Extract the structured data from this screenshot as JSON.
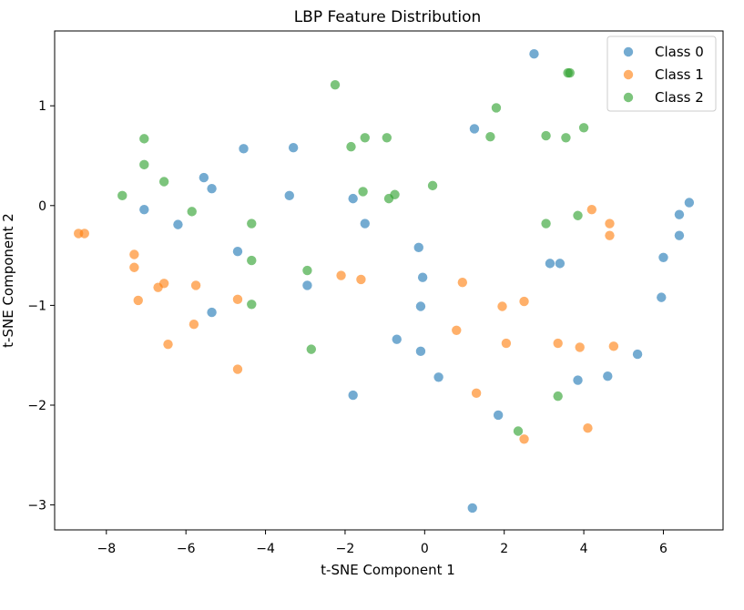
{
  "chart_data": {
    "type": "scatter",
    "title": "LBP Feature Distribution",
    "xlabel": "t-SNE Component 1",
    "ylabel": "t-SNE Component 2",
    "xlim": [
      -9.3,
      7.5
    ],
    "ylim": [
      -3.25,
      1.75
    ],
    "xticks": [
      -8,
      -6,
      -4,
      -2,
      0,
      2,
      4,
      6
    ],
    "yticks": [
      -3,
      -2,
      -1,
      0,
      1
    ],
    "xtick_labels": [
      "−8",
      "−6",
      "−4",
      "−2",
      "0",
      "2",
      "4",
      "6"
    ],
    "ytick_labels": [
      "−3",
      "−2",
      "−1",
      "0",
      "1"
    ],
    "grid": false,
    "legend_position": "top-right",
    "series": [
      {
        "name": "Class 0",
        "color": "#1f77b4",
        "points": [
          [
            2.75,
            1.52
          ],
          [
            1.25,
            0.77
          ],
          [
            -4.55,
            0.57
          ],
          [
            -3.3,
            0.58
          ],
          [
            -5.55,
            0.28
          ],
          [
            -5.35,
            0.17
          ],
          [
            -3.4,
            0.1
          ],
          [
            -1.8,
            0.07
          ],
          [
            -7.05,
            -0.04
          ],
          [
            -6.2,
            -0.19
          ],
          [
            -1.5,
            -0.18
          ],
          [
            -4.7,
            -0.46
          ],
          [
            -0.15,
            -0.42
          ],
          [
            -0.05,
            -0.72
          ],
          [
            -2.95,
            -0.8
          ],
          [
            -0.1,
            -1.01
          ],
          [
            -5.35,
            -1.07
          ],
          [
            -0.7,
            -1.34
          ],
          [
            -0.1,
            -1.46
          ],
          [
            0.35,
            -1.72
          ],
          [
            -1.8,
            -1.9
          ],
          [
            1.85,
            -2.1
          ],
          [
            1.2,
            -3.03
          ],
          [
            3.15,
            -0.58
          ],
          [
            3.4,
            -0.58
          ],
          [
            3.85,
            -1.75
          ],
          [
            4.6,
            -1.71
          ],
          [
            5.35,
            -1.49
          ],
          [
            5.95,
            -0.92
          ],
          [
            6.0,
            -0.52
          ],
          [
            6.4,
            -0.3
          ],
          [
            6.4,
            -0.09
          ],
          [
            6.65,
            0.03
          ]
        ]
      },
      {
        "name": "Class 1",
        "color": "#ff7f0e",
        "points": [
          [
            -8.7,
            -0.28
          ],
          [
            -8.55,
            -0.28
          ],
          [
            -7.3,
            -0.49
          ],
          [
            -7.3,
            -0.62
          ],
          [
            -7.2,
            -0.95
          ],
          [
            -6.7,
            -0.82
          ],
          [
            -6.55,
            -0.78
          ],
          [
            -5.75,
            -0.8
          ],
          [
            -5.8,
            -1.19
          ],
          [
            -6.45,
            -1.39
          ],
          [
            -4.7,
            -0.94
          ],
          [
            -4.7,
            -1.64
          ],
          [
            -2.1,
            -0.7
          ],
          [
            -1.6,
            -0.74
          ],
          [
            0.95,
            -0.77
          ],
          [
            0.8,
            -1.25
          ],
          [
            1.3,
            -1.88
          ],
          [
            1.95,
            -1.01
          ],
          [
            2.05,
            -1.38
          ],
          [
            2.5,
            -0.96
          ],
          [
            2.5,
            -2.34
          ],
          [
            3.35,
            -1.38
          ],
          [
            3.9,
            -1.42
          ],
          [
            4.1,
            -2.23
          ],
          [
            4.2,
            -0.04
          ],
          [
            4.65,
            -0.18
          ],
          [
            4.65,
            -0.3
          ],
          [
            4.75,
            -1.41
          ]
        ]
      },
      {
        "name": "Class 2",
        "color": "#2ca02c",
        "points": [
          [
            -2.25,
            1.21
          ],
          [
            1.8,
            0.98
          ],
          [
            3.65,
            1.33
          ],
          [
            3.6,
            1.33
          ],
          [
            4.0,
            0.78
          ],
          [
            -7.05,
            0.67
          ],
          [
            -1.5,
            0.68
          ],
          [
            -0.95,
            0.68
          ],
          [
            -1.85,
            0.59
          ],
          [
            1.65,
            0.69
          ],
          [
            3.05,
            0.7
          ],
          [
            3.55,
            0.68
          ],
          [
            -7.05,
            0.41
          ],
          [
            -6.55,
            0.24
          ],
          [
            -7.6,
            0.1
          ],
          [
            -1.55,
            0.14
          ],
          [
            -0.75,
            0.11
          ],
          [
            -0.9,
            0.07
          ],
          [
            0.2,
            0.2
          ],
          [
            -5.85,
            -0.06
          ],
          [
            -4.35,
            -0.18
          ],
          [
            3.05,
            -0.18
          ],
          [
            3.85,
            -0.1
          ],
          [
            -4.35,
            -0.55
          ],
          [
            -2.95,
            -0.65
          ],
          [
            -4.35,
            -0.99
          ],
          [
            -2.85,
            -1.44
          ],
          [
            2.35,
            -2.26
          ],
          [
            3.35,
            -1.91
          ]
        ]
      }
    ]
  }
}
